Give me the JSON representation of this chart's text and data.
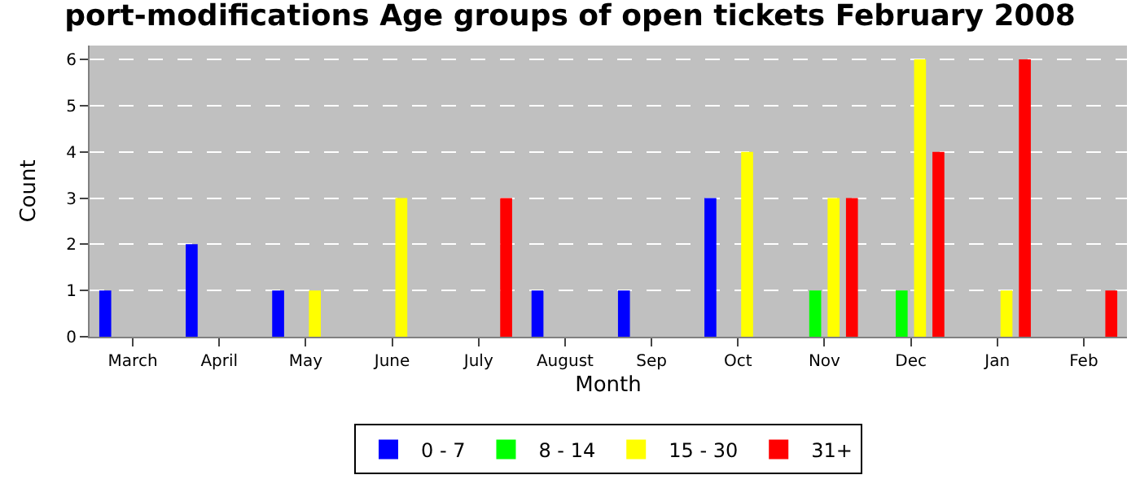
{
  "chart_data": {
    "type": "bar",
    "title": "port-modifications Age groups of open tickets February 2008",
    "xlabel": "Month",
    "ylabel": "Count",
    "categories": [
      "March",
      "April",
      "May",
      "June",
      "July",
      "August",
      "Sep",
      "Oct",
      "Nov",
      "Dec",
      "Jan",
      "Feb"
    ],
    "series": [
      {
        "name": "0 - 7",
        "color": "#0000ff",
        "values": [
          1,
          2,
          1,
          0,
          0,
          1,
          1,
          3,
          0,
          0,
          0,
          0
        ]
      },
      {
        "name": "8 - 14",
        "color": "#00ff00",
        "values": [
          0,
          0,
          0,
          0,
          0,
          0,
          0,
          0,
          1,
          1,
          0,
          0
        ]
      },
      {
        "name": "15 - 30",
        "color": "#ffff00",
        "values": [
          0,
          0,
          1,
          3,
          0,
          0,
          0,
          4,
          3,
          6,
          1,
          0
        ]
      },
      {
        "name": "31+",
        "color": "#ff0000",
        "values": [
          0,
          0,
          0,
          0,
          3,
          0,
          0,
          0,
          3,
          4,
          6,
          1
        ]
      }
    ],
    "ylim": [
      0,
      6.3
    ],
    "yticks": [
      0,
      1,
      2,
      3,
      4,
      5,
      6
    ],
    "grid": "y",
    "legend": "bottom"
  }
}
